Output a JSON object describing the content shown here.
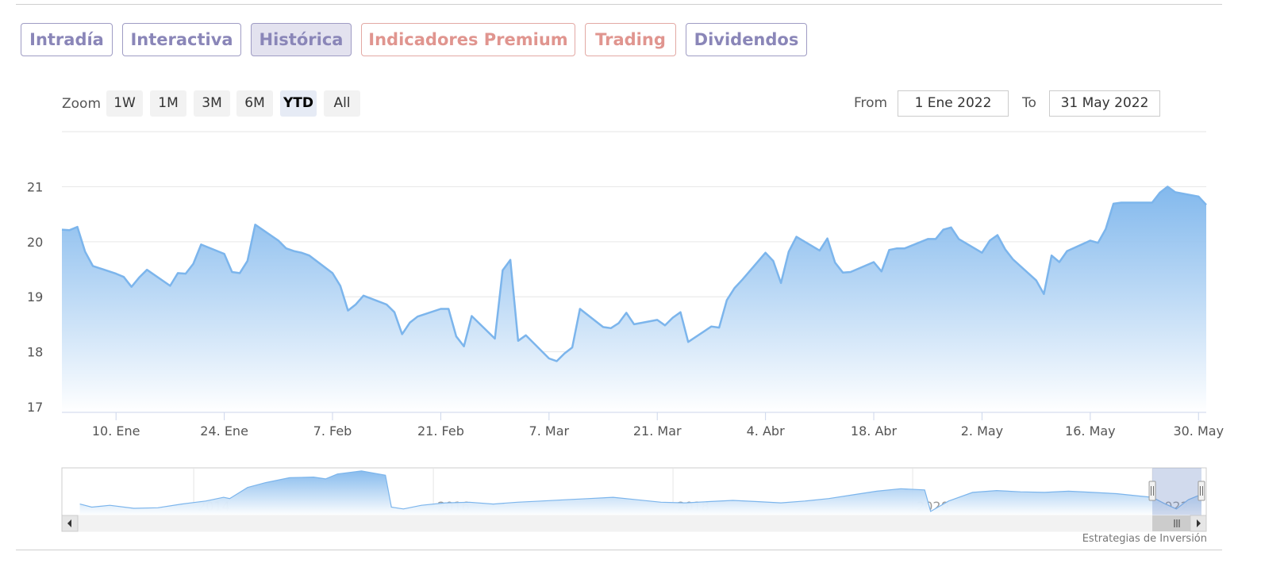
{
  "tabs": [
    {
      "label": "Intradía",
      "color": "purple",
      "active": false
    },
    {
      "label": "Interactiva",
      "color": "purple",
      "active": false
    },
    {
      "label": "Histórica",
      "color": "purple",
      "active": true
    },
    {
      "label": "Indicadores Premium",
      "color": "salmon",
      "active": false
    },
    {
      "label": "Trading",
      "color": "salmon",
      "active": false
    },
    {
      "label": "Dividendos",
      "color": "purple",
      "active": false
    }
  ],
  "range_selector": {
    "zoom_label": "Zoom",
    "buttons": [
      "1W",
      "1M",
      "3M",
      "6M",
      "YTD",
      "All"
    ],
    "selected": "YTD",
    "from_label": "From",
    "from_value": "1 Ene 2022",
    "to_label": "To",
    "to_value": "31 May 2022"
  },
  "credit": "Estrategias de Inversión",
  "colors": {
    "line": "#7cb5ec",
    "fill_top": "#7cb5ec",
    "fill_bottom": "#ffffff",
    "purple": "#8a86b8",
    "salmon": "#e0958f"
  },
  "chart_data": {
    "type": "area",
    "x_unit": "date",
    "yticks": [
      17,
      18,
      19,
      20,
      21
    ],
    "ylim": [
      16.9,
      22.0
    ],
    "xlim": [
      "2022-01-03",
      "2022-05-31"
    ],
    "xticks": [
      {
        "date": "2022-01-10",
        "label": "10. Ene"
      },
      {
        "date": "2022-01-24",
        "label": "24. Ene"
      },
      {
        "date": "2022-02-07",
        "label": "7. Feb"
      },
      {
        "date": "2022-02-21",
        "label": "21. Feb"
      },
      {
        "date": "2022-03-07",
        "label": "7. Mar"
      },
      {
        "date": "2022-03-21",
        "label": "21. Mar"
      },
      {
        "date": "2022-04-04",
        "label": "4. Abr"
      },
      {
        "date": "2022-04-18",
        "label": "18. Abr"
      },
      {
        "date": "2022-05-02",
        "label": "2. May"
      },
      {
        "date": "2022-05-16",
        "label": "16. May"
      },
      {
        "date": "2022-05-30",
        "label": "30. May"
      }
    ],
    "series": [
      {
        "points": [
          [
            "2022-01-03",
            20.22
          ],
          [
            "2022-01-04",
            20.21
          ],
          [
            "2022-01-05",
            20.27
          ],
          [
            "2022-01-06",
            19.82
          ],
          [
            "2022-01-07",
            19.56
          ],
          [
            "2022-01-10",
            19.42
          ],
          [
            "2022-01-11",
            19.36
          ],
          [
            "2022-01-12",
            19.18
          ],
          [
            "2022-01-13",
            19.35
          ],
          [
            "2022-01-14",
            19.49
          ],
          [
            "2022-01-17",
            19.2
          ],
          [
            "2022-01-18",
            19.43
          ],
          [
            "2022-01-19",
            19.42
          ],
          [
            "2022-01-20",
            19.6
          ],
          [
            "2022-01-21",
            19.95
          ],
          [
            "2022-01-24",
            19.78
          ],
          [
            "2022-01-25",
            19.45
          ],
          [
            "2022-01-26",
            19.43
          ],
          [
            "2022-01-27",
            19.65
          ],
          [
            "2022-01-28",
            20.31
          ],
          [
            "2022-01-31",
            20.02
          ],
          [
            "2022-02-01",
            19.88
          ],
          [
            "2022-02-02",
            19.83
          ],
          [
            "2022-02-03",
            19.8
          ],
          [
            "2022-02-04",
            19.75
          ],
          [
            "2022-02-07",
            19.43
          ],
          [
            "2022-02-08",
            19.2
          ],
          [
            "2022-02-09",
            18.75
          ],
          [
            "2022-02-10",
            18.86
          ],
          [
            "2022-02-11",
            19.02
          ],
          [
            "2022-02-14",
            18.86
          ],
          [
            "2022-02-15",
            18.72
          ],
          [
            "2022-02-16",
            18.32
          ],
          [
            "2022-02-17",
            18.53
          ],
          [
            "2022-02-18",
            18.64
          ],
          [
            "2022-02-21",
            18.78
          ],
          [
            "2022-02-22",
            18.78
          ],
          [
            "2022-02-23",
            18.28
          ],
          [
            "2022-02-24",
            18.1
          ],
          [
            "2022-02-25",
            18.65
          ],
          [
            "2022-02-28",
            18.24
          ],
          [
            "2022-03-01",
            19.48
          ],
          [
            "2022-03-02",
            19.67
          ],
          [
            "2022-03-03",
            18.2
          ],
          [
            "2022-03-04",
            18.3
          ],
          [
            "2022-03-07",
            17.88
          ],
          [
            "2022-03-08",
            17.83
          ],
          [
            "2022-03-09",
            17.97
          ],
          [
            "2022-03-10",
            18.08
          ],
          [
            "2022-03-11",
            18.78
          ],
          [
            "2022-03-14",
            18.45
          ],
          [
            "2022-03-15",
            18.43
          ],
          [
            "2022-03-16",
            18.52
          ],
          [
            "2022-03-17",
            18.71
          ],
          [
            "2022-03-18",
            18.5
          ],
          [
            "2022-03-21",
            18.58
          ],
          [
            "2022-03-22",
            18.48
          ],
          [
            "2022-03-23",
            18.62
          ],
          [
            "2022-03-24",
            18.72
          ],
          [
            "2022-03-25",
            18.18
          ],
          [
            "2022-03-28",
            18.46
          ],
          [
            "2022-03-29",
            18.44
          ],
          [
            "2022-03-30",
            18.94
          ],
          [
            "2022-03-31",
            19.16
          ],
          [
            "2022-04-01",
            19.31
          ],
          [
            "2022-04-04",
            19.8
          ],
          [
            "2022-04-05",
            19.65
          ],
          [
            "2022-04-06",
            19.25
          ],
          [
            "2022-04-07",
            19.82
          ],
          [
            "2022-04-08",
            20.09
          ],
          [
            "2022-04-11",
            19.84
          ],
          [
            "2022-04-12",
            20.06
          ],
          [
            "2022-04-13",
            19.62
          ],
          [
            "2022-04-14",
            19.44
          ],
          [
            "2022-04-15",
            19.45
          ],
          [
            "2022-04-18",
            19.63
          ],
          [
            "2022-04-19",
            19.46
          ],
          [
            "2022-04-20",
            19.85
          ],
          [
            "2022-04-21",
            19.88
          ],
          [
            "2022-04-22",
            19.88
          ],
          [
            "2022-04-25",
            20.05
          ],
          [
            "2022-04-26",
            20.05
          ],
          [
            "2022-04-27",
            20.22
          ],
          [
            "2022-04-28",
            20.26
          ],
          [
            "2022-04-29",
            20.05
          ],
          [
            "2022-05-02",
            19.8
          ],
          [
            "2022-05-03",
            20.02
          ],
          [
            "2022-05-04",
            20.12
          ],
          [
            "2022-05-05",
            19.86
          ],
          [
            "2022-05-06",
            19.68
          ],
          [
            "2022-05-09",
            19.3
          ],
          [
            "2022-05-10",
            19.05
          ],
          [
            "2022-05-11",
            19.75
          ],
          [
            "2022-05-12",
            19.63
          ],
          [
            "2022-05-13",
            19.83
          ],
          [
            "2022-05-16",
            20.02
          ],
          [
            "2022-05-17",
            19.98
          ],
          [
            "2022-05-18",
            20.23
          ],
          [
            "2022-05-19",
            20.69
          ],
          [
            "2022-05-20",
            20.71
          ],
          [
            "2022-05-23",
            20.71
          ],
          [
            "2022-05-24",
            20.71
          ],
          [
            "2022-05-25",
            20.89
          ],
          [
            "2022-05-26",
            21.0
          ],
          [
            "2022-05-27",
            20.9
          ],
          [
            "2022-05-30",
            20.82
          ],
          [
            "2022-05-31",
            20.67
          ]
        ]
      }
    ],
    "navigator": {
      "xticks": [
        "2014",
        "2016",
        "2018",
        "2020",
        "2022"
      ],
      "xlim": [
        2012.9,
        2022.45
      ],
      "selection": [
        2022.0,
        2022.41
      ],
      "points": [
        [
          2013.05,
          19.1
        ],
        [
          2013.15,
          18.6
        ],
        [
          2013.3,
          18.9
        ],
        [
          2013.5,
          18.4
        ],
        [
          2013.7,
          18.5
        ],
        [
          2013.9,
          19.1
        ],
        [
          2014.1,
          19.6
        ],
        [
          2014.25,
          20.2
        ],
        [
          2014.3,
          20.0
        ],
        [
          2014.45,
          21.8
        ],
        [
          2014.6,
          22.6
        ],
        [
          2014.8,
          23.4
        ],
        [
          2015.0,
          23.5
        ],
        [
          2015.1,
          23.2
        ],
        [
          2015.2,
          24.0
        ],
        [
          2015.4,
          24.5
        ],
        [
          2015.6,
          23.8
        ],
        [
          2015.65,
          18.6
        ],
        [
          2015.75,
          18.3
        ],
        [
          2015.9,
          18.9
        ],
        [
          2016.1,
          19.3
        ],
        [
          2016.3,
          19.4
        ],
        [
          2016.5,
          19.1
        ],
        [
          2016.7,
          19.4
        ],
        [
          2016.9,
          19.6
        ],
        [
          2017.1,
          19.8
        ],
        [
          2017.3,
          20.0
        ],
        [
          2017.5,
          20.2
        ],
        [
          2017.7,
          19.8
        ],
        [
          2017.9,
          19.4
        ],
        [
          2018.1,
          19.3
        ],
        [
          2018.3,
          19.5
        ],
        [
          2018.5,
          19.7
        ],
        [
          2018.7,
          19.5
        ],
        [
          2018.9,
          19.3
        ],
        [
          2019.1,
          19.6
        ],
        [
          2019.3,
          20.0
        ],
        [
          2019.5,
          20.6
        ],
        [
          2019.7,
          21.2
        ],
        [
          2019.9,
          21.6
        ],
        [
          2020.1,
          21.4
        ],
        [
          2020.15,
          17.9
        ],
        [
          2020.3,
          19.6
        ],
        [
          2020.5,
          21.0
        ],
        [
          2020.7,
          21.3
        ],
        [
          2020.9,
          21.1
        ],
        [
          2021.1,
          21.0
        ],
        [
          2021.3,
          21.2
        ],
        [
          2021.5,
          21.0
        ],
        [
          2021.7,
          20.8
        ],
        [
          2021.9,
          20.4
        ],
        [
          2022.0,
          20.2
        ],
        [
          2022.1,
          19.2
        ],
        [
          2022.2,
          18.3
        ],
        [
          2022.3,
          19.8
        ],
        [
          2022.41,
          20.7
        ]
      ]
    }
  }
}
